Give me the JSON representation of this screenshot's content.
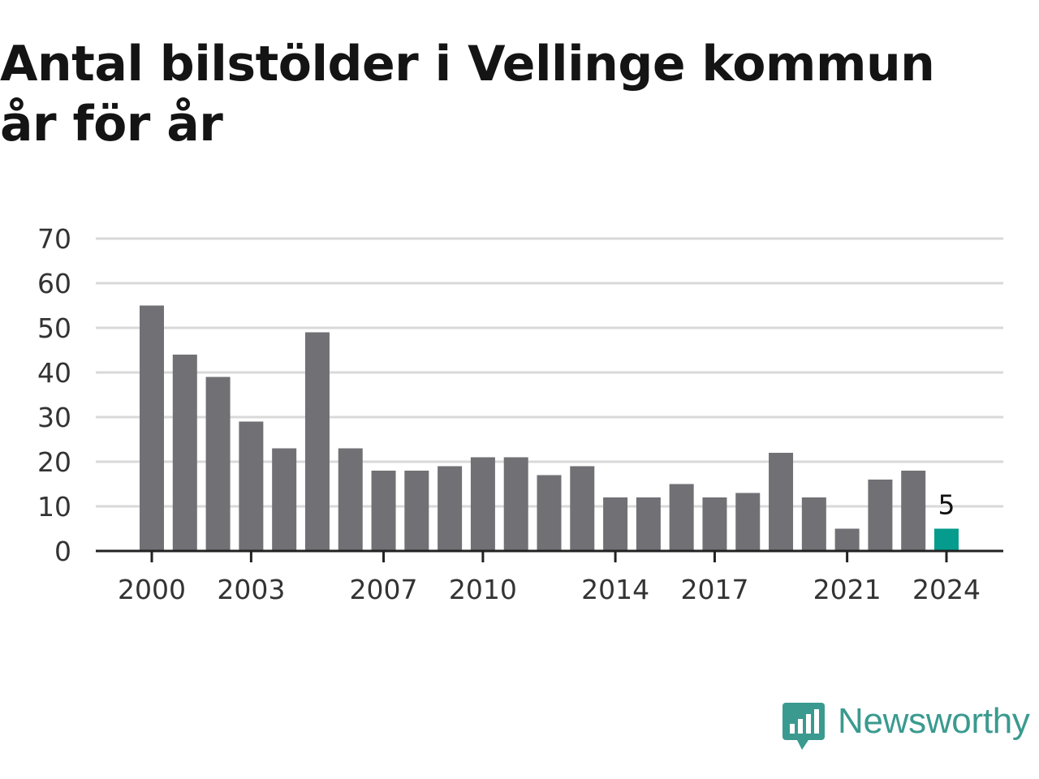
{
  "title": "Antal bilstölder i Vellinge kommun år för år",
  "colors": {
    "bar": "#717075",
    "highlight": "#069c8d",
    "grid": "#d9d9d9",
    "axis": "#222222",
    "brand": "#3a9a8f"
  },
  "brand": {
    "name": "Newsworthy",
    "icon": "newsworthy-logo-icon"
  },
  "chart_data": {
    "type": "bar",
    "title": "Antal bilstölder i Vellinge kommun år för år",
    "xlabel": "",
    "ylabel": "",
    "categories": [
      "2000",
      "2001",
      "2002",
      "2003",
      "2004",
      "2005",
      "2006",
      "2007",
      "2008",
      "2009",
      "2010",
      "2011",
      "2012",
      "2013",
      "2014",
      "2015",
      "2016",
      "2017",
      "2018",
      "2019",
      "2020",
      "2021",
      "2022",
      "2023",
      "2024"
    ],
    "values": [
      55,
      44,
      39,
      29,
      23,
      49,
      23,
      18,
      18,
      19,
      21,
      21,
      17,
      19,
      12,
      12,
      15,
      12,
      13,
      22,
      12,
      5,
      16,
      18,
      5
    ],
    "ylim": [
      0,
      70
    ],
    "yticks": [
      "0",
      "10",
      "20",
      "30",
      "40",
      "50",
      "60",
      "70"
    ],
    "xtick_labels": [
      "2000",
      "2003",
      "2007",
      "2010",
      "2014",
      "2017",
      "2021",
      "2024"
    ],
    "highlight_category": "2024",
    "data_labels": [
      {
        "category": "2024",
        "text": "5"
      }
    ],
    "grid": true,
    "legend": "none"
  }
}
